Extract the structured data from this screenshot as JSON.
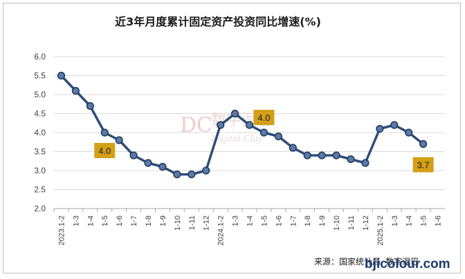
{
  "chart_data": {
    "type": "line",
    "title": "近3年月度累计固定资产投资同比增速(%)",
    "xlabel": "",
    "ylabel": "",
    "ylim": [
      2.0,
      6.0
    ],
    "yticks": [
      "6.0",
      "5.5",
      "5.0",
      "4.5",
      "4.0",
      "3.5",
      "3.0",
      "2.5",
      "2.0"
    ],
    "categories": [
      "2023.1-2",
      "1-3",
      "1-4",
      "1-5",
      "1-6",
      "1-7",
      "1-8",
      "1-9",
      "1-10",
      "1-11",
      "1-12",
      "2024.1-2",
      "1-3",
      "1-4",
      "1-5",
      "1-6",
      "1-7",
      "1-8",
      "1-9",
      "1-10",
      "1-11",
      "1-12",
      "2025.1-2",
      "1-3",
      "1-4",
      "1-5",
      "1-6"
    ],
    "series": [
      {
        "values": [
          5.5,
          5.1,
          4.7,
          4.0,
          3.8,
          3.4,
          3.2,
          3.1,
          2.9,
          2.9,
          3.0,
          4.2,
          4.5,
          4.2,
          4.0,
          3.9,
          3.6,
          3.4,
          3.4,
          3.4,
          3.3,
          3.2,
          4.1,
          4.2,
          4.0,
          3.7,
          null
        ],
        "color": "#2e4d78"
      }
    ],
    "data_labels": [
      {
        "index": 3,
        "text": "4.0"
      },
      {
        "index": 14,
        "text": "4.0"
      },
      {
        "index": 25,
        "text": "3.7"
      }
    ],
    "label_color": "#d4a017",
    "grid": true,
    "legend": "none"
  },
  "source_text": "来源：国家统计局 数字泥巴",
  "watermark": {
    "mark": "DC",
    "cn": "数字泥巴",
    "en": "Digital Clay",
    "site": "bjicolour.com"
  }
}
